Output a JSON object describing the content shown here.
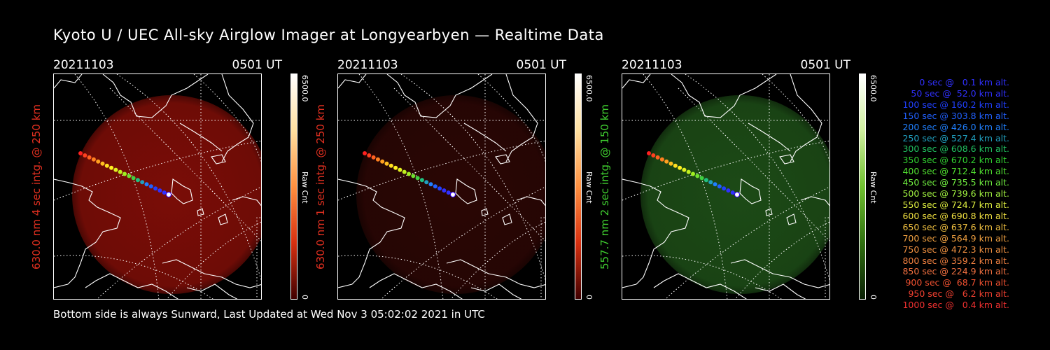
{
  "title": "Kyoto U / UEC All-sky Airglow Imager at Longyearbyen — Realtime Data",
  "footer": "Bottom side is always Sunward, Last Updated at Wed Nov  3 05:02:02 2021 in UTC",
  "panels": [
    {
      "date": "20211103",
      "time": "0501 UT",
      "side_label": "630.0 nm 4 sec intg. @ 250 km",
      "label_color": "#e33020",
      "colorbar_max": "6500.0",
      "colorbar_min": "0",
      "colorbar_label": "Raw Cnt",
      "colormap": [
        "#ffffff",
        "#ffe0a0",
        "#ff9040",
        "#d83010",
        "#400000"
      ],
      "disk_color": "#7a0d07",
      "disk_opacity": 1.0
    },
    {
      "date": "20211103",
      "time": "0501 UT",
      "side_label": "630.0 nm 1 sec intg. @ 250 km",
      "label_color": "#e33020",
      "colorbar_max": "6500.0",
      "colorbar_min": "0",
      "colorbar_label": "Raw Cnt",
      "colormap": [
        "#ffffff",
        "#ffe0a0",
        "#ff9040",
        "#d83010",
        "#400000"
      ],
      "disk_color": "#2a0604",
      "disk_opacity": 1.0
    },
    {
      "date": "20211103",
      "time": "0501 UT",
      "side_label": "557.7 nm 2 sec intg. @ 150 km",
      "label_color": "#40d030",
      "colorbar_max": "6500.0",
      "colorbar_min": "0",
      "colorbar_label": "Raw Cnt",
      "colormap": [
        "#ffffff",
        "#d0f0a0",
        "#70c030",
        "#307010",
        "#0a2005"
      ],
      "disk_color": "#1c4a16",
      "disk_opacity": 1.0
    }
  ],
  "legend": [
    {
      "text": "0 sec @   0.1 km alt.",
      "color": "#3030ff"
    },
    {
      "text": "50 sec @  52.0 km alt.",
      "color": "#3030ff"
    },
    {
      "text": "100 sec @ 160.2 km alt.",
      "color": "#2040ff"
    },
    {
      "text": "150 sec @ 303.8 km alt.",
      "color": "#2060ff"
    },
    {
      "text": "200 sec @ 426.0 km alt.",
      "color": "#2080ff"
    },
    {
      "text": "250 sec @ 527.4 km alt.",
      "color": "#20a0c0"
    },
    {
      "text": "300 sec @ 608.6 km alt.",
      "color": "#20c060"
    },
    {
      "text": "350 sec @ 670.2 km alt.",
      "color": "#30d030"
    },
    {
      "text": "400 sec @ 712.4 km alt.",
      "color": "#50e030"
    },
    {
      "text": "450 sec @ 735.5 km alt.",
      "color": "#70f040"
    },
    {
      "text": "500 sec @ 739.6 km alt.",
      "color": "#a0f040"
    },
    {
      "text": "550 sec @ 724.7 km alt.",
      "color": "#e0f040"
    },
    {
      "text": "600 sec @ 690.8 km alt.",
      "color": "#f0e040"
    },
    {
      "text": "650 sec @ 637.6 km alt.",
      "color": "#f0c040"
    },
    {
      "text": "700 sec @ 564.9 km alt.",
      "color": "#f0a040"
    },
    {
      "text": "750 sec @ 472.3 km alt.",
      "color": "#f09040"
    },
    {
      "text": "800 sec @ 359.2 km alt.",
      "color": "#f08040"
    },
    {
      "text": "850 sec @ 224.9 km alt.",
      "color": "#f07040"
    },
    {
      "text": "900 sec @  68.7 km alt.",
      "color": "#f05030"
    },
    {
      "text": "950 sec @   6.2 km alt.",
      "color": "#f04030"
    },
    {
      "text": "1000 sec @   0.4 km alt.",
      "color": "#f03030"
    }
  ],
  "track_colors": [
    "#ff2020",
    "#ff4020",
    "#ff6020",
    "#ff8020",
    "#ffa020",
    "#ffc020",
    "#ffe020",
    "#fff020",
    "#e0f020",
    "#c0f020",
    "#a0f020",
    "#70e030",
    "#40d040",
    "#20c080",
    "#20a0c0",
    "#2080ff",
    "#2060ff",
    "#2040ff",
    "#3030ff",
    "#3030ff",
    "#ffffff"
  ]
}
